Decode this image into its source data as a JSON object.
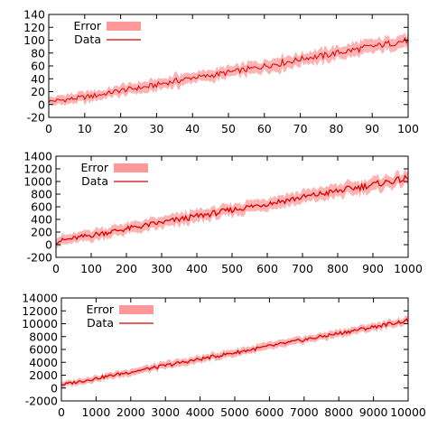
{
  "colors": {
    "band": "#ff9999",
    "line": "#dd0000",
    "frame": "#000000",
    "background": "#ffffff"
  },
  "chart_data": [
    {
      "type": "line",
      "title": "",
      "xlabel": "",
      "ylabel": "",
      "xlim": [
        0,
        100
      ],
      "ylim": [
        -20,
        140
      ],
      "xticks": [
        "0",
        "10",
        "20",
        "30",
        "40",
        "50",
        "60",
        "70",
        "80",
        "90",
        "100"
      ],
      "yticks": [
        "-20",
        "0",
        "20",
        "40",
        "60",
        "80",
        "100",
        "120",
        "140"
      ],
      "grid": false,
      "legend_position": "top-left",
      "legend": {
        "error": "Error",
        "data": "Data"
      },
      "series": [
        {
          "name": "Data",
          "band_label": "Error",
          "x": [
            0,
            4,
            8,
            12,
            16,
            20,
            24,
            28,
            32,
            36,
            40,
            44,
            48,
            52,
            56,
            60,
            64,
            68,
            72,
            76,
            80,
            84,
            88,
            92,
            96,
            100
          ],
          "y": [
            5,
            7,
            10,
            13,
            17,
            22,
            25,
            28,
            33,
            37,
            42,
            44,
            48,
            52,
            55,
            60,
            64,
            68,
            73,
            75,
            80,
            84,
            88,
            92,
            96,
            100
          ],
          "error": [
            6,
            8,
            8,
            9,
            7,
            9,
            8,
            10,
            8,
            11,
            7,
            9,
            10,
            8,
            11,
            9,
            12,
            10,
            9,
            12,
            10,
            11,
            12,
            10,
            12,
            10
          ]
        }
      ]
    },
    {
      "type": "line",
      "title": "",
      "xlabel": "",
      "ylabel": "",
      "xlim": [
        0,
        1000
      ],
      "ylim": [
        -200,
        1400
      ],
      "xticks": [
        "0",
        "100",
        "200",
        "300",
        "400",
        "500",
        "600",
        "700",
        "800",
        "900",
        "1000"
      ],
      "yticks": [
        "-200",
        "0",
        "200",
        "400",
        "600",
        "800",
        "1000",
        "1200",
        "1400"
      ],
      "grid": false,
      "legend_position": "top-left",
      "legend": {
        "error": "Error",
        "data": "Data"
      },
      "series": [
        {
          "name": "Data",
          "band_label": "Error",
          "x": [
            0,
            50,
            100,
            150,
            200,
            250,
            300,
            350,
            400,
            450,
            500,
            550,
            600,
            650,
            700,
            750,
            800,
            850,
            900,
            950,
            1000
          ],
          "y": [
            50,
            100,
            150,
            200,
            250,
            300,
            350,
            400,
            450,
            500,
            550,
            600,
            650,
            700,
            750,
            800,
            850,
            900,
            950,
            1000,
            1050
          ],
          "error": [
            80,
            80,
            90,
            90,
            90,
            100,
            90,
            100,
            100,
            100,
            100,
            100,
            100,
            110,
            100,
            110,
            110,
            110,
            110,
            110,
            110
          ]
        }
      ]
    },
    {
      "type": "line",
      "title": "",
      "xlabel": "",
      "ylabel": "",
      "xlim": [
        0,
        10000
      ],
      "ylim": [
        -2000,
        14000
      ],
      "xticks": [
        "0",
        "1000",
        "2000",
        "3000",
        "4000",
        "5000",
        "6000",
        "7000",
        "8000",
        "9000",
        "10000"
      ],
      "yticks": [
        "-2000",
        "0",
        "2000",
        "4000",
        "6000",
        "8000",
        "10000",
        "12000",
        "14000"
      ],
      "grid": false,
      "legend_position": "top-left",
      "legend": {
        "error": "Error",
        "data": "Data"
      },
      "series": [
        {
          "name": "Data",
          "band_label": "Error",
          "x": [
            0,
            500,
            1000,
            1500,
            2000,
            2500,
            3000,
            3500,
            4000,
            4500,
            5000,
            5500,
            6000,
            6500,
            7000,
            7500,
            8000,
            8500,
            9000,
            9500,
            10000
          ],
          "y": [
            500,
            1000,
            1500,
            2000,
            2500,
            3000,
            3500,
            4000,
            4500,
            5000,
            5500,
            6000,
            6500,
            7000,
            7500,
            8000,
            8500,
            9000,
            9500,
            10000,
            10500
          ],
          "error": [
            500,
            500,
            500,
            550,
            550,
            550,
            600,
            600,
            600,
            600,
            600,
            600,
            600,
            600,
            600,
            600,
            600,
            600,
            600,
            600,
            600
          ]
        }
      ]
    }
  ]
}
